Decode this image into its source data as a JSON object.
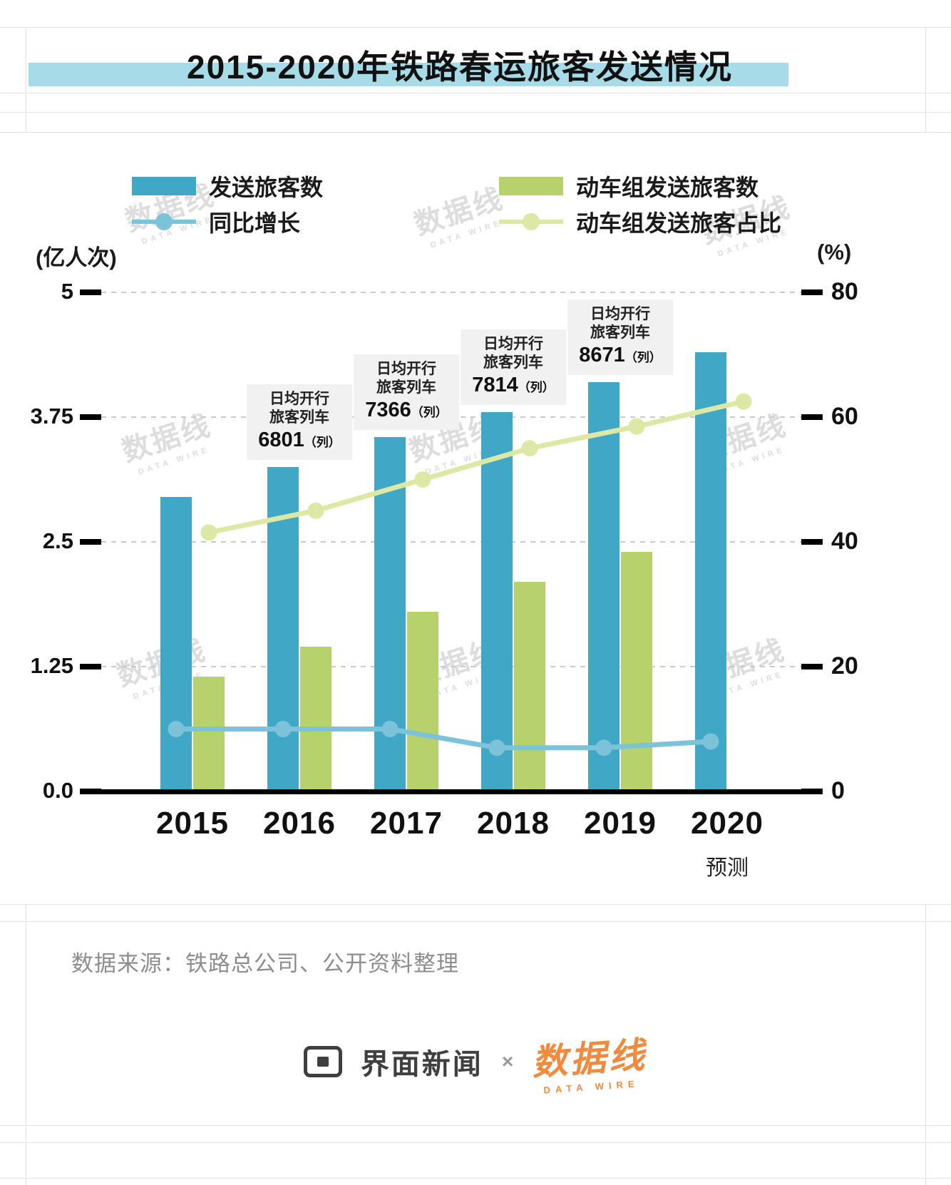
{
  "title": "2015-2020年铁路春运旅客发送情况",
  "source": "数据来源：铁路总公司、公开资料整理",
  "watermark": {
    "text": "数据线",
    "sub": "DATA WIRE"
  },
  "footer": {
    "brand1": "界面新闻",
    "separator": "×",
    "brand2": "数据线",
    "brand2_sub": "DATA WIRE"
  },
  "colors": {
    "title_highlight": "#a6dbe7",
    "bar_blue": "#41a7c6",
    "bar_green": "#b7d16c",
    "line_blue": "#7cc3da",
    "line_green": "#dde8a4",
    "orange": "#f08a3c",
    "grid": "#c9c9c9",
    "text_dark": "#111111",
    "text_gray": "#8d8d8d"
  },
  "chart_data": {
    "type": "bar+line combo",
    "categories": [
      "2015",
      "2016",
      "2017",
      "2018",
      "2019",
      "2020"
    ],
    "x_sublabel": {
      "category": "2020",
      "label": "预测"
    },
    "left_axis": {
      "unit": "(亿人次)",
      "range": [
        0,
        5
      ],
      "ticks": [
        0,
        1.25,
        2.5,
        3.75,
        5
      ],
      "tick_labels": [
        "0.0",
        "1.25",
        "2.5",
        "3.75",
        "5"
      ]
    },
    "right_axis": {
      "unit": "(%)",
      "range": [
        0,
        80
      ],
      "ticks": [
        0,
        20,
        40,
        60,
        80
      ],
      "tick_labels": [
        "0",
        "20",
        "40",
        "60",
        "80"
      ]
    },
    "grid": "dashed horizontal, legend top",
    "series": [
      {
        "name": "发送旅客数",
        "type": "bar",
        "axis": "left",
        "color": "#41a7c6",
        "values": [
          2.95,
          3.25,
          3.55,
          3.8,
          4.1,
          4.4
        ]
      },
      {
        "name": "动车组发送旅客数",
        "type": "bar",
        "axis": "left",
        "color": "#b7d16c",
        "values": [
          1.15,
          1.45,
          1.8,
          2.1,
          2.4,
          null
        ]
      },
      {
        "name": "同比增长",
        "type": "line",
        "axis": "right",
        "color": "#7cc3da",
        "values": [
          10,
          10,
          10,
          7,
          7,
          8
        ]
      },
      {
        "name": "动车组发送旅客占比",
        "type": "line",
        "axis": "right",
        "color": "#dde8a4",
        "values": [
          41.5,
          45,
          50,
          55,
          58.5,
          62.5
        ]
      }
    ],
    "annotations": [
      {
        "category": "2016",
        "lines": [
          "日均开行",
          "旅客列车"
        ],
        "number": "6801",
        "unit": "（列）"
      },
      {
        "category": "2017",
        "lines": [
          "日均开行",
          "旅客列车"
        ],
        "number": "7366",
        "unit": "（列）"
      },
      {
        "category": "2018",
        "lines": [
          "日均开行",
          "旅客列车"
        ],
        "number": "7814",
        "unit": "（列）"
      },
      {
        "category": "2019",
        "lines": [
          "日均开行",
          "旅客列车"
        ],
        "number": "8671",
        "unit": "（列）"
      }
    ]
  }
}
